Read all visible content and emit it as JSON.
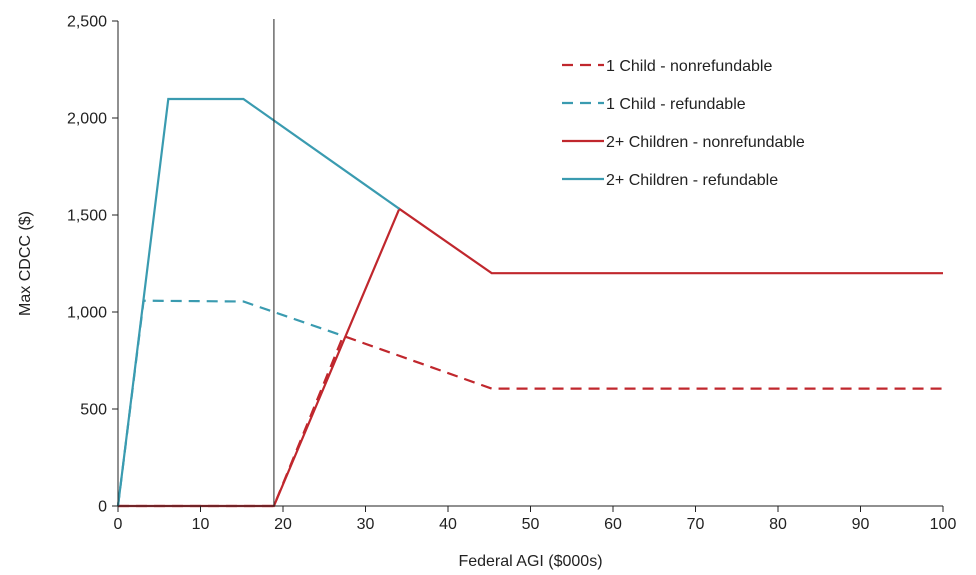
{
  "chart_data": {
    "type": "line",
    "title": "",
    "xlabel": "Federal AGI ($000s)",
    "ylabel": "Max CDCC ($)",
    "xlim": [
      0,
      100
    ],
    "ylim": [
      0,
      2500
    ],
    "xticks": [
      0,
      10,
      20,
      30,
      40,
      50,
      60,
      70,
      80,
      90,
      100
    ],
    "xtick_labels": [
      "0",
      "10",
      "20",
      "30",
      "40",
      "50",
      "60",
      "70",
      "80",
      "90",
      "100"
    ],
    "yticks": [
      0,
      500,
      1000,
      1500,
      2000,
      2500
    ],
    "ytick_labels": [
      "0",
      "500",
      "1,000",
      "1,500",
      "2,000",
      "2,500"
    ],
    "grid": false,
    "legend_position": "top-right",
    "reference_line_x": 18.9,
    "colors": {
      "red": "#c0272d",
      "teal": "#3a9bb0"
    },
    "series": [
      {
        "name": "1 Child - nonrefundable",
        "color": "#c0272d",
        "dash": true,
        "x": [
          0,
          18.9,
          27.3,
          45.3,
          100
        ],
        "y": [
          0,
          0,
          877,
          605,
          605
        ]
      },
      {
        "name": "1 Child - refundable",
        "color": "#3a9bb0",
        "dash": true,
        "x": [
          0,
          3.1,
          15.2,
          18.9,
          27.3
        ],
        "y": [
          0,
          1058,
          1054,
          1000,
          877
        ]
      },
      {
        "name": "2+ Children - nonrefundable",
        "color": "#c0272d",
        "dash": false,
        "x": [
          0,
          18.9,
          34.1,
          45.3,
          100
        ],
        "y": [
          0,
          0,
          1532,
          1200,
          1200
        ]
      },
      {
        "name": "2+ Children - refundable",
        "color": "#3a9bb0",
        "dash": false,
        "x": [
          0,
          6.1,
          15.2,
          34.1
        ],
        "y": [
          0,
          2098,
          2098,
          1532
        ]
      }
    ]
  }
}
